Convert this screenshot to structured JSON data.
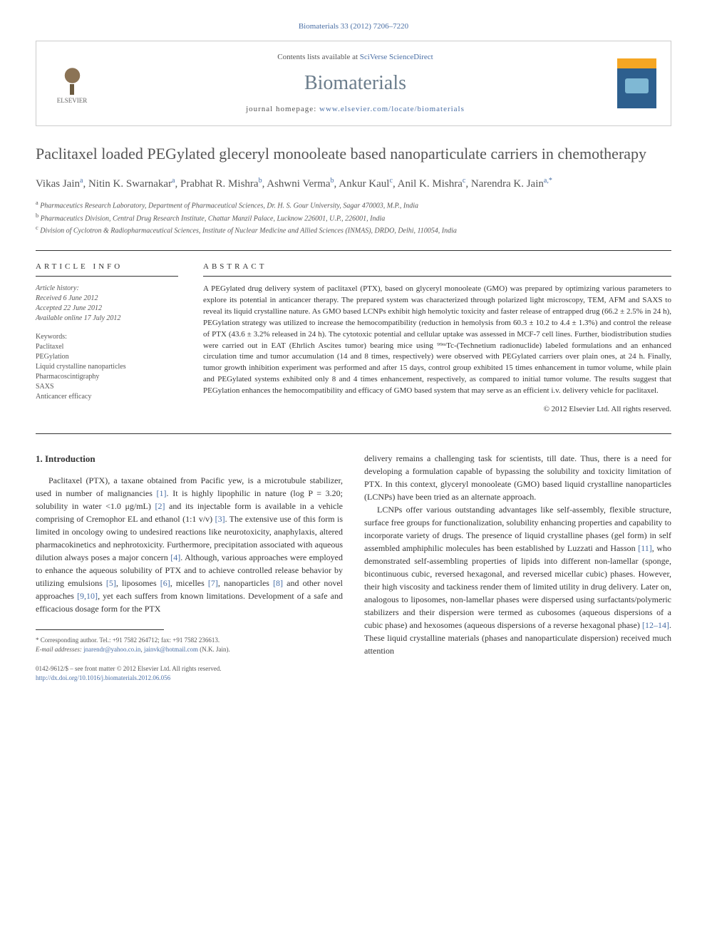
{
  "citation": "Biomaterials 33 (2012) 7206–7220",
  "contents_text": "Contents lists available at ",
  "contents_link": "SciVerse ScienceDirect",
  "journal_name": "Biomaterials",
  "homepage_label": "journal homepage: ",
  "homepage_url": "www.elsevier.com/locate/biomaterials",
  "elsevier_label": "ELSEVIER",
  "title": "Paclitaxel loaded PEGylated gleceryl monooleate based nanoparticulate carriers in chemotherapy",
  "authors_html": "Vikas Jain",
  "authors": [
    {
      "name": "Vikas Jain",
      "sup": "a"
    },
    {
      "name": "Nitin K. Swarnakar",
      "sup": "a"
    },
    {
      "name": "Prabhat R. Mishra",
      "sup": "b"
    },
    {
      "name": "Ashwni Verma",
      "sup": "b"
    },
    {
      "name": "Ankur Kaul",
      "sup": "c"
    },
    {
      "name": "Anil K. Mishra",
      "sup": "c"
    },
    {
      "name": "Narendra K. Jain",
      "sup": "a,*"
    }
  ],
  "affiliations": [
    {
      "sup": "a",
      "text": "Pharmaceutics Research Laboratory, Department of Pharmaceutical Sciences, Dr. H. S. Gour University, Sagar 470003, M.P., India"
    },
    {
      "sup": "b",
      "text": "Pharmaceutics Division, Central Drug Research Institute, Chattar Manzil Palace, Lucknow 226001, U.P., 226001, India"
    },
    {
      "sup": "c",
      "text": "Division of Cyclotron & Radiopharmaceutical Sciences, Institute of Nuclear Medicine and Allied Sciences (INMAS), DRDO, Delhi, 110054, India"
    }
  ],
  "info_heading": "ARTICLE INFO",
  "abstract_heading": "ABSTRACT",
  "history_label": "Article history:",
  "history": [
    "Received 6 June 2012",
    "Accepted 22 June 2012",
    "Available online 17 July 2012"
  ],
  "keywords_label": "Keywords:",
  "keywords": [
    "Paclitaxel",
    "PEGylation",
    "Liquid crystalline nanoparticles",
    "Pharmacoscintigraphy",
    "SAXS",
    "Anticancer efficacy"
  ],
  "abstract": "A PEGylated drug delivery system of paclitaxel (PTX), based on glyceryl monooleate (GMO) was prepared by optimizing various parameters to explore its potential in anticancer therapy. The prepared system was characterized through polarized light microscopy, TEM, AFM and SAXS to reveal its liquid crystalline nature. As GMO based LCNPs exhibit high hemolytic toxicity and faster release of entrapped drug (66.2 ± 2.5% in 24 h), PEGylation strategy was utilized to increase the hemocompatibility (reduction in hemolysis from 60.3 ± 10.2 to 4.4 ± 1.3%) and control the release of PTX (43.6 ± 3.2% released in 24 h). The cytotoxic potential and cellular uptake was assessed in MCF-7 cell lines. Further, biodistribution studies were carried out in EAT (Ehrlich Ascites tumor) bearing mice using ⁹⁹ᵐTc-(Technetium radionuclide) labeled formulations and an enhanced circulation time and tumor accumulation (14 and 8 times, respectively) were observed with PEGylated carriers over plain ones, at 24 h. Finally, tumor growth inhibition experiment was performed and after 15 days, control group exhibited 15 times enhancement in tumor volume, while plain and PEGylated systems exhibited only 8 and 4 times enhancement, respectively, as compared to initial tumor volume. The results suggest that PEGylation enhances the hemocompatibility and efficacy of GMO based system that may serve as an efficient i.v. delivery vehicle for paclitaxel.",
  "copyright": "© 2012 Elsevier Ltd. All rights reserved.",
  "intro_heading": "1. Introduction",
  "intro_col1": "Paclitaxel (PTX), a taxane obtained from Pacific yew, is a microtubule stabilizer, used in number of malignancies [1]. It is highly lipophilic in nature (log P = 3.20; solubility in water <1.0 μg/mL) [2] and its injectable form is available in a vehicle comprising of Cremophor EL and ethanol (1:1 v/v) [3]. The extensive use of this form is limited in oncology owing to undesired reactions like neurotoxicity, anaphylaxis, altered pharmacokinetics and nephrotoxicity. Furthermore, precipitation associated with aqueous dilution always poses a major concern [4]. Although, various approaches were employed to enhance the aqueous solubility of PTX and to achieve controlled release behavior by utilizing emulsions [5], liposomes [6], micelles [7], nanoparticles [8] and other novel approaches [9,10], yet each suffers from known limitations. Development of a safe and efficacious dosage form for the PTX",
  "intro_col2a": "delivery remains a challenging task for scientists, till date. Thus, there is a need for developing a formulation capable of bypassing the solubility and toxicity limitation of PTX. In this context, glyceryl monooleate (GMO) based liquid crystalline nanoparticles (LCNPs) have been tried as an alternate approach.",
  "intro_col2b": "LCNPs offer various outstanding advantages like self-assembly, flexible structure, surface free groups for functionalization, solubility enhancing properties and capability to incorporate variety of drugs. The presence of liquid crystalline phases (gel form) in self assembled amphiphilic molecules has been established by Luzzati and Hasson [11], who demonstrated self-assembling properties of lipids into different non-lamellar (sponge, bicontinuous cubic, reversed hexagonal, and reversed micellar cubic) phases. However, their high viscosity and tackiness render them of limited utility in drug delivery. Later on, analogous to liposomes, non-lamellar phases were dispersed using surfactants/polymeric stabilizers and their dispersion were termed as cubosomes (aqueous dispersions of a cubic phase) and hexosomes (aqueous dispersions of a reverse hexagonal phase) [12–14]. These liquid crystalline materials (phases and nanoparticulate dispersion) received much attention",
  "corresponding": "* Corresponding author. Tel.: +91 7582 264712; fax: +91 7582 236613.",
  "email_label": "E-mail addresses: ",
  "email1": "jnarendr@yahoo.co.in",
  "email2": "jainvk@hotmail.com",
  "email_suffix": " (N.K. Jain).",
  "issn": "0142-9612/$ – see front matter © 2012 Elsevier Ltd. All rights reserved.",
  "doi": "http://dx.doi.org/10.1016/j.biomaterials.2012.06.056",
  "colors": {
    "link": "#4a6fa5",
    "text": "#333333",
    "muted": "#555555",
    "journal_title": "#6b7d8c"
  }
}
